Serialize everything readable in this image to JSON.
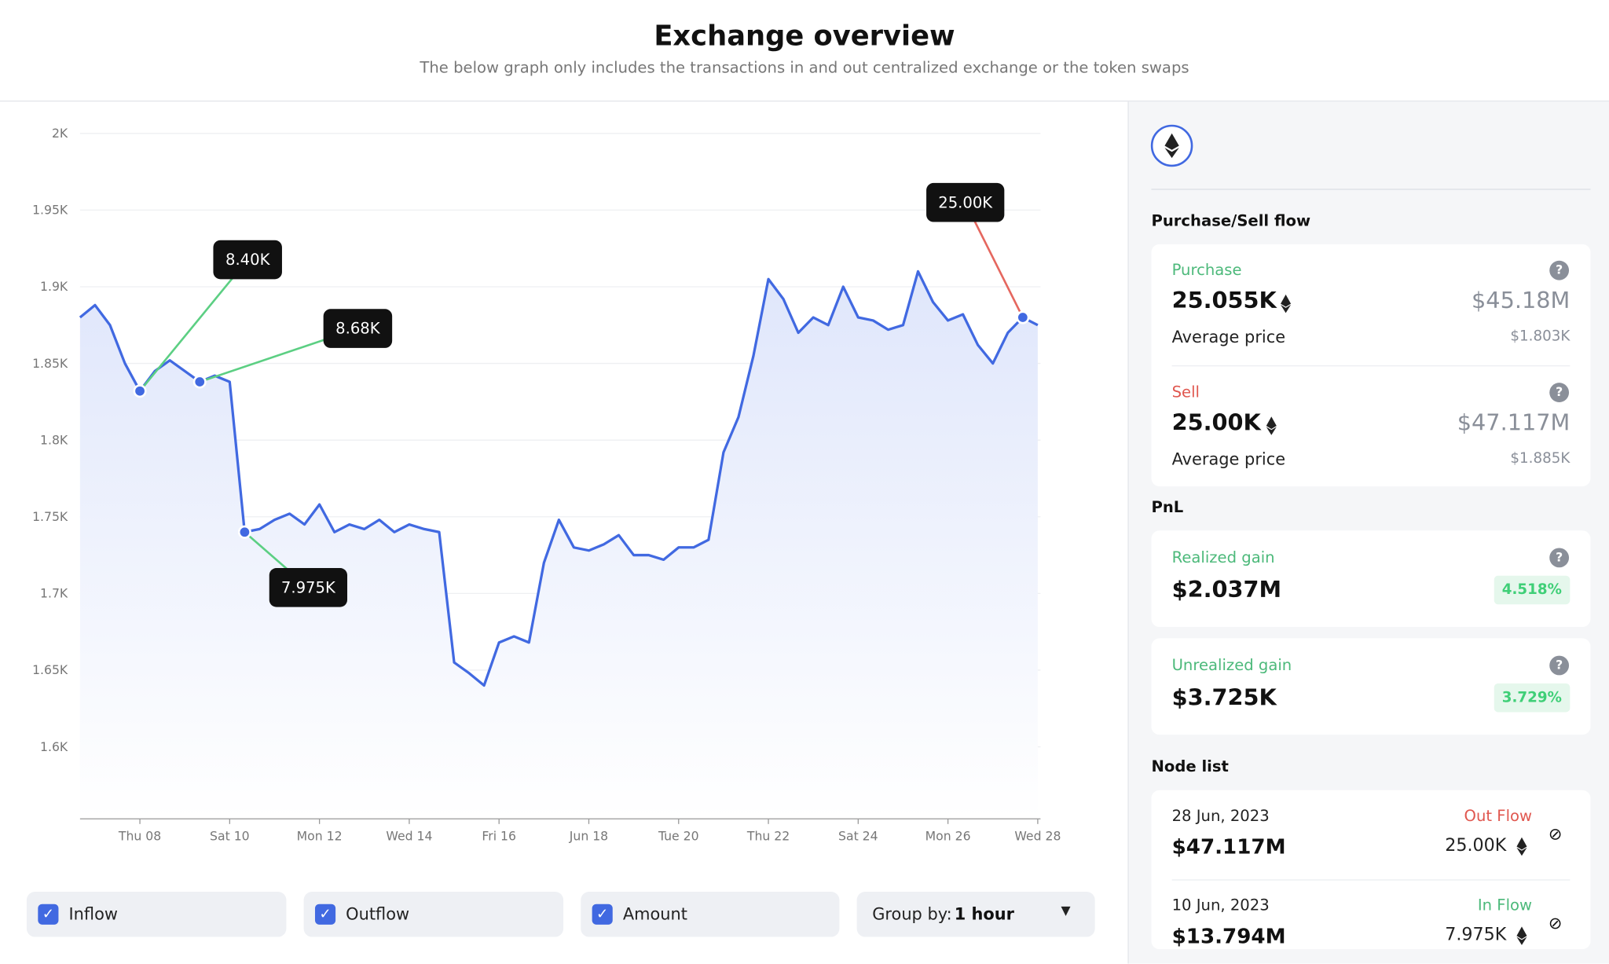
{
  "header": {
    "title": "Exchange overview",
    "subtitle": "The below graph only includes the transactions in and out centralized exchange or the token swaps"
  },
  "chart_data": {
    "type": "line",
    "categories": [
      null,
      null,
      null,
      null,
      "Thu 08",
      null,
      null,
      null,
      null,
      null,
      "Sat 10",
      null,
      null,
      null,
      null,
      null,
      "Mon 12",
      null,
      null,
      null,
      null,
      null,
      "Wed 14",
      null,
      null,
      null,
      null,
      null,
      "Fri 16",
      null,
      null,
      null,
      null,
      null,
      "Jun 18",
      null,
      null,
      null,
      null,
      null,
      "Tue 20",
      null,
      null,
      null,
      null,
      null,
      "Thu 22",
      null,
      null,
      null,
      null,
      null,
      "Sat 24",
      null,
      null,
      null,
      null,
      null,
      "Mon 26",
      null,
      null,
      null,
      null,
      null,
      "Wed 28"
    ],
    "series": [
      {
        "color": "#4169e1",
        "values": [
          1880,
          1888,
          1875,
          1850,
          1832,
          1845,
          1852,
          1845,
          1838,
          1842,
          1838,
          1740,
          1742,
          1748,
          1752,
          1745,
          1758,
          1740,
          1745,
          1742,
          1748,
          1740,
          1745,
          1742,
          1740,
          1655,
          1648,
          1640,
          1668,
          1672,
          1668,
          1720,
          1748,
          1730,
          1728,
          1732,
          1738,
          1725,
          1725,
          1722,
          1730,
          1730,
          1735,
          1792,
          1815,
          1855,
          1905,
          1892,
          1870,
          1880,
          1875,
          1900,
          1880,
          1878,
          1872,
          1875,
          1910,
          1890,
          1878,
          1882,
          1862,
          1850,
          1870,
          1880,
          1875
        ]
      }
    ],
    "ylim": [
      1553,
      2000
    ],
    "yticks": [
      {
        "value": 1600,
        "label": "1.6K"
      },
      {
        "value": 1650,
        "label": "1.65K"
      },
      {
        "value": 1700,
        "label": "1.7K"
      },
      {
        "value": 1750,
        "label": "1.75K"
      },
      {
        "value": 1800,
        "label": "1.8K"
      },
      {
        "value": 1850,
        "label": "1.85K"
      },
      {
        "value": 1900,
        "label": "1.9K"
      },
      {
        "value": 1950,
        "label": "1.95K"
      },
      {
        "value": 2000,
        "label": "2K"
      }
    ],
    "grid": true,
    "annotations": [
      {
        "text": "8.40K",
        "index": 4,
        "color": "#5ccf83"
      },
      {
        "text": "8.68K",
        "index": 8,
        "color": "#5ccf83"
      },
      {
        "text": "7.975K",
        "index": 11,
        "color": "#5ccf83"
      },
      {
        "text": "25.00K",
        "index": 63,
        "color": "#e5675f"
      }
    ]
  },
  "controls": {
    "toggles": [
      "Inflow",
      "Outflow",
      "Amount"
    ],
    "group_by_label": "Group by:",
    "group_by_value": "1 hour"
  },
  "panel": {
    "flow_title": "Purchase/Sell flow",
    "flows": [
      {
        "label": "Purchase",
        "amount": "25.055K",
        "value": "$45.18M",
        "avg_label": "Average price",
        "avg": "$1.803K"
      },
      {
        "label": "Sell",
        "amount": "25.00K",
        "value": "$47.117M",
        "avg_label": "Average price",
        "avg": "$1.885K"
      }
    ],
    "pnl_title": "PnL",
    "pnl": [
      {
        "label": "Realized gain",
        "value": "$2.037M",
        "change": "4.518%"
      },
      {
        "label": "Unrealized gain",
        "value": "$3.725K",
        "change": "3.729%"
      }
    ],
    "node_title": "Node list",
    "nodes": [
      {
        "date": "28 Jun, 2023",
        "value": "$47.117M",
        "direction": "Out Flow",
        "amount": "25.00K"
      },
      {
        "date": "10 Jun, 2023",
        "value": "$13.794M",
        "direction": "In Flow",
        "amount": "7.975K"
      }
    ]
  }
}
